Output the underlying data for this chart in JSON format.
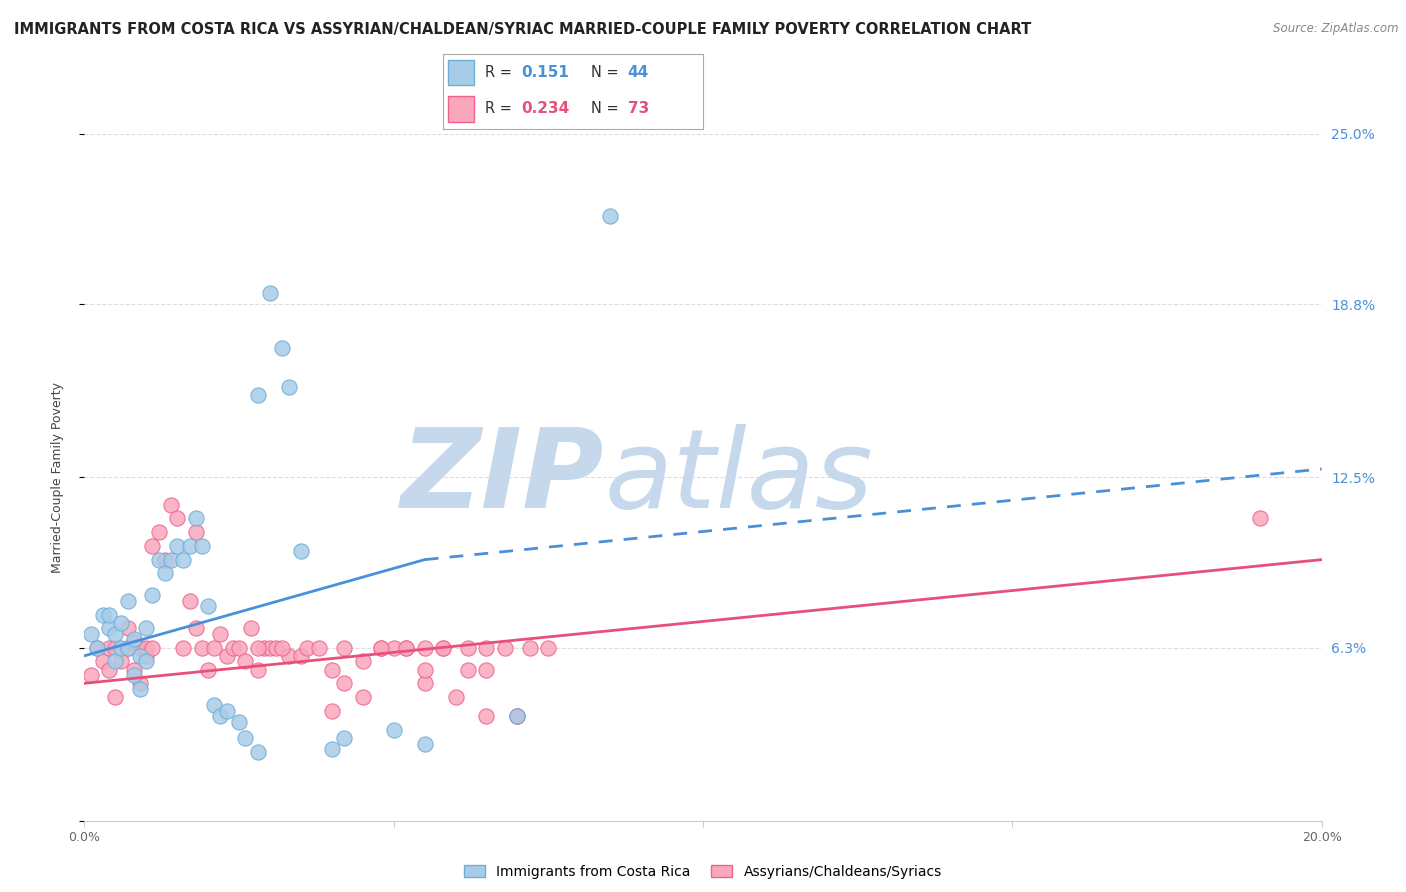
{
  "title": "IMMIGRANTS FROM COSTA RICA VS ASSYRIAN/CHALDEAN/SYRIAC MARRIED-COUPLE FAMILY POVERTY CORRELATION CHART",
  "source": "Source: ZipAtlas.com",
  "ylabel": "Married-Couple Family Poverty",
  "xlim": [
    0.0,
    0.2
  ],
  "ylim": [
    0.0,
    0.25
  ],
  "yticks": [
    0.0,
    0.063,
    0.125,
    0.188,
    0.25
  ],
  "ytick_labels": [
    "",
    "6.3%",
    "12.5%",
    "18.8%",
    "25.0%"
  ],
  "xticks": [
    0.0,
    0.05,
    0.1,
    0.15,
    0.2
  ],
  "xtick_labels": [
    "0.0%",
    "",
    "",
    "",
    "20.0%"
  ],
  "legend_R1": "0.151",
  "legend_N1": "44",
  "legend_R2": "0.234",
  "legend_N2": "73",
  "series1_color": "#a8cce8",
  "series2_color": "#f9a8bc",
  "series1_edge": "#6baed6",
  "series2_edge": "#f06090",
  "trendline1_color": "#4a90d9",
  "trendline2_color": "#e8507a",
  "watermark_zip": "ZIP",
  "watermark_atlas": "atlas",
  "watermark_color": "#c5d8ec",
  "background_color": "#ffffff",
  "series1_x": [
    0.001,
    0.002,
    0.003,
    0.004,
    0.004,
    0.005,
    0.005,
    0.006,
    0.006,
    0.007,
    0.007,
    0.008,
    0.008,
    0.009,
    0.009,
    0.01,
    0.01,
    0.011,
    0.012,
    0.013,
    0.014,
    0.015,
    0.016,
    0.017,
    0.018,
    0.019,
    0.02,
    0.021,
    0.022,
    0.023,
    0.025,
    0.026,
    0.028,
    0.03,
    0.032,
    0.033,
    0.035,
    0.04,
    0.042,
    0.05,
    0.055,
    0.07,
    0.085,
    0.028
  ],
  "series1_y": [
    0.068,
    0.063,
    0.075,
    0.07,
    0.075,
    0.058,
    0.068,
    0.063,
    0.072,
    0.063,
    0.08,
    0.053,
    0.066,
    0.06,
    0.048,
    0.07,
    0.058,
    0.082,
    0.095,
    0.09,
    0.095,
    0.1,
    0.095,
    0.1,
    0.11,
    0.1,
    0.078,
    0.042,
    0.038,
    0.04,
    0.036,
    0.03,
    0.025,
    0.192,
    0.172,
    0.158,
    0.098,
    0.026,
    0.03,
    0.033,
    0.028,
    0.038,
    0.22,
    0.155
  ],
  "series2_x": [
    0.001,
    0.002,
    0.003,
    0.004,
    0.004,
    0.005,
    0.005,
    0.006,
    0.007,
    0.007,
    0.008,
    0.008,
    0.009,
    0.009,
    0.01,
    0.01,
    0.011,
    0.011,
    0.012,
    0.013,
    0.014,
    0.015,
    0.016,
    0.017,
    0.018,
    0.018,
    0.019,
    0.02,
    0.021,
    0.022,
    0.023,
    0.024,
    0.025,
    0.026,
    0.027,
    0.028,
    0.029,
    0.03,
    0.031,
    0.033,
    0.035,
    0.036,
    0.038,
    0.04,
    0.042,
    0.045,
    0.048,
    0.052,
    0.055,
    0.058,
    0.062,
    0.065,
    0.068,
    0.07,
    0.072,
    0.075,
    0.06,
    0.065,
    0.055,
    0.05,
    0.045,
    0.04,
    0.055,
    0.065,
    0.07,
    0.19,
    0.042,
    0.062,
    0.058,
    0.048,
    0.052,
    0.028,
    0.032
  ],
  "series2_y": [
    0.053,
    0.063,
    0.058,
    0.055,
    0.063,
    0.045,
    0.063,
    0.058,
    0.063,
    0.07,
    0.055,
    0.065,
    0.063,
    0.05,
    0.06,
    0.063,
    0.1,
    0.063,
    0.105,
    0.095,
    0.115,
    0.11,
    0.063,
    0.08,
    0.07,
    0.105,
    0.063,
    0.055,
    0.063,
    0.068,
    0.06,
    0.063,
    0.063,
    0.058,
    0.07,
    0.055,
    0.063,
    0.063,
    0.063,
    0.06,
    0.06,
    0.063,
    0.063,
    0.055,
    0.063,
    0.058,
    0.063,
    0.063,
    0.05,
    0.063,
    0.055,
    0.063,
    0.063,
    0.038,
    0.063,
    0.063,
    0.045,
    0.038,
    0.063,
    0.063,
    0.045,
    0.04,
    0.055,
    0.055,
    0.038,
    0.11,
    0.05,
    0.063,
    0.063,
    0.063,
    0.063,
    0.063,
    0.063
  ],
  "trendline1_x_start": 0.0,
  "trendline1_x_solid_end": 0.055,
  "trendline1_x_end": 0.2,
  "trendline1_y_start": 0.06,
  "trendline1_y_solid_end": 0.095,
  "trendline1_y_end": 0.128,
  "trendline2_x_start": 0.0,
  "trendline2_x_end": 0.2,
  "trendline2_y_start": 0.05,
  "trendline2_y_end": 0.095,
  "title_fontsize": 10.5,
  "axis_fontsize": 9,
  "tick_color": "#666666",
  "grid_color": "#dddddd"
}
